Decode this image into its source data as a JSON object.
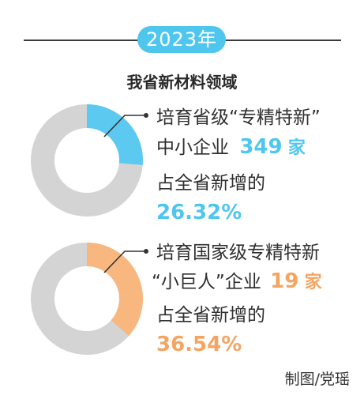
{
  "header": {
    "year": "2023年",
    "subtitle": "我省新材料领域"
  },
  "colors": {
    "blue": "#5cc9f0",
    "orange": "#f7b77f",
    "grey": "#d4d4d4",
    "pill": "#4fc6ee"
  },
  "chart_data": [
    {
      "type": "pie",
      "labels": [
        "培育省级“专精特新”",
        "中小企业"
      ],
      "count_value": "349",
      "count_unit": "家",
      "share_label": "占全省新增的",
      "share_text": "26.32%",
      "value": 26.32,
      "color": "#5cc9f0"
    },
    {
      "type": "pie",
      "labels": [
        "培育国家级专精特新",
        "“小巨人”企业"
      ],
      "count_value": "19",
      "count_unit": "家",
      "share_label": "占全省新增的",
      "share_text": "36.54%",
      "value": 36.54,
      "color": "#f7b77f"
    }
  ],
  "credit": "制图/党瑶"
}
